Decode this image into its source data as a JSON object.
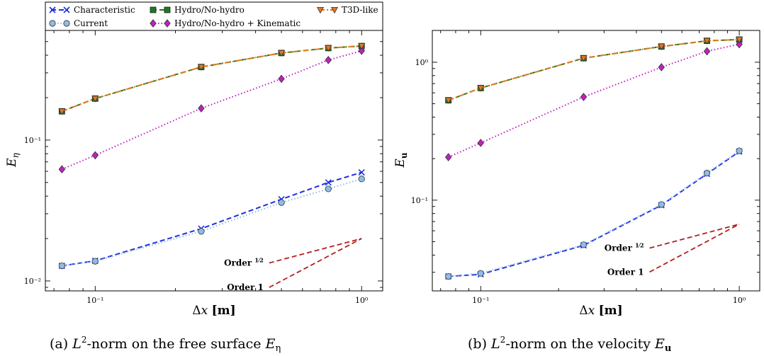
{
  "legend": {
    "entries": [
      {
        "name": "Characteristic",
        "color": "#1f2fe0",
        "marker": "x",
        "dash": "dashed"
      },
      {
        "name": "Current",
        "color": "#8fbbe6",
        "marker": "o",
        "dash": "dotted"
      },
      {
        "name": "Hydro/No-hydro",
        "color": "#1f7a1f",
        "marker": "s",
        "dash": "dashed"
      },
      {
        "name": "Hydro/No-hydro + Kinematic",
        "color": "#c020c0",
        "marker": "d",
        "dash": "dotted"
      },
      {
        "name": "T3D-like",
        "color": "#e07a20",
        "marker": "v",
        "dash": "dashdot"
      }
    ]
  },
  "chart_data": [
    {
      "type": "line",
      "xscale": "log",
      "yscale": "log",
      "xlabel_symbol": "Δx",
      "xlabel_unit": "[m]",
      "ylabel": "Eη",
      "xlim": [
        0.065,
        1.2
      ],
      "ylim": [
        0.0085,
        0.6
      ],
      "x_tick_labels": [
        "10⁻¹",
        "10⁰"
      ],
      "y_tick_labels": [
        "10⁻²",
        "10⁻¹"
      ],
      "x": [
        0.075,
        0.1,
        0.25,
        0.5,
        0.75,
        1.0
      ],
      "series": [
        {
          "name": "Characteristic",
          "values": [
            0.0128,
            0.0139,
            0.0235,
            0.038,
            0.05,
            0.059
          ]
        },
        {
          "name": "Current",
          "values": [
            0.0128,
            0.0138,
            0.0225,
            0.036,
            0.045,
            0.053
          ]
        },
        {
          "name": "Hydro/No-hydro",
          "values": [
            0.16,
            0.197,
            0.33,
            0.415,
            0.45,
            0.465
          ]
        },
        {
          "name": "Hydro/No-hydro + Kinematic",
          "values": [
            0.062,
            0.078,
            0.168,
            0.272,
            0.37,
            0.43
          ]
        },
        {
          "name": "T3D-like",
          "values": [
            0.16,
            0.197,
            0.33,
            0.415,
            0.45,
            0.465
          ]
        }
      ],
      "order_lines": [
        {
          "label": "Order",
          "fraction": "1/2",
          "order": 0.5
        },
        {
          "label": "Order 1",
          "order": 1
        }
      ],
      "order_anchor": {
        "x": 1.0,
        "y": 0.02,
        "x_start": 0.45
      },
      "caption": {
        "prefix": "(a)",
        "norm": "L²-norm on the free surface",
        "symbol": "Eη"
      }
    },
    {
      "type": "line",
      "xscale": "log",
      "yscale": "log",
      "xlabel_symbol": "Δx",
      "xlabel_unit": "[m]",
      "ylabel": "Eu",
      "xlim": [
        0.065,
        1.2
      ],
      "ylim": [
        0.022,
        1.7
      ],
      "x_tick_labels": [
        "10⁻¹",
        "10⁰"
      ],
      "y_tick_labels": [
        "10⁻¹",
        "10⁰"
      ],
      "x": [
        0.075,
        0.1,
        0.25,
        0.5,
        0.75,
        1.0
      ],
      "series": [
        {
          "name": "Characteristic",
          "values": [
            0.028,
            0.029,
            0.047,
            0.092,
            0.155,
            0.225
          ]
        },
        {
          "name": "Current",
          "values": [
            0.028,
            0.0295,
            0.0475,
            0.093,
            0.157,
            0.228
          ]
        },
        {
          "name": "Hydro/No-hydro",
          "values": [
            0.53,
            0.65,
            1.07,
            1.3,
            1.43,
            1.46
          ]
        },
        {
          "name": "Hydro/No-hydro + Kinematic",
          "values": [
            0.205,
            0.26,
            0.56,
            0.92,
            1.2,
            1.35
          ]
        },
        {
          "name": "T3D-like",
          "values": [
            0.53,
            0.65,
            1.07,
            1.3,
            1.43,
            1.46
          ]
        }
      ],
      "order_lines": [
        {
          "label": "Order",
          "fraction": "1/2",
          "order": 0.5
        },
        {
          "label": "Order 1",
          "order": 1
        }
      ],
      "order_anchor": {
        "x": 1.0,
        "y": 0.067,
        "x_start": 0.45
      },
      "caption": {
        "prefix": "(b)",
        "norm": "L²-norm on the velocity",
        "symbol": "Eu"
      }
    }
  ]
}
